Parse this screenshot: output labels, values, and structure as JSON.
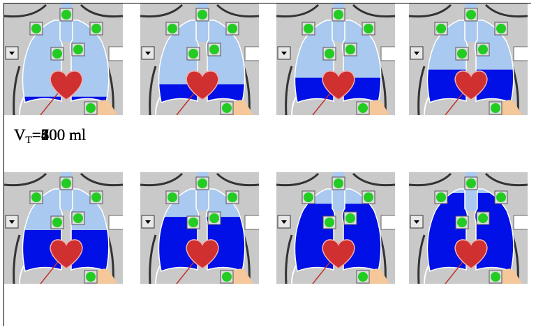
{
  "table": {
    "cells": [
      {
        "symbol": "V",
        "subscript": "T",
        "text": "=100 ml"
      },
      {
        "symbol": "V",
        "subscript": "T",
        "text": "=200 ml"
      },
      {
        "symbol": "V",
        "subscript": "T",
        "text": "=300 ml"
      },
      {
        "symbol": "V",
        "subscript": "T",
        "text": "=400 ml"
      },
      {
        "symbol": "V",
        "subscript": "T",
        "text": "=500 ml"
      },
      {
        "symbol": "V",
        "subscript": "T",
        "text": "=600 ml"
      },
      {
        "symbol": "V",
        "subscript": "T",
        "text": "=700 ml"
      },
      {
        "symbol": "V",
        "subscript": "T",
        "text": "=800 ml"
      }
    ]
  }
}
